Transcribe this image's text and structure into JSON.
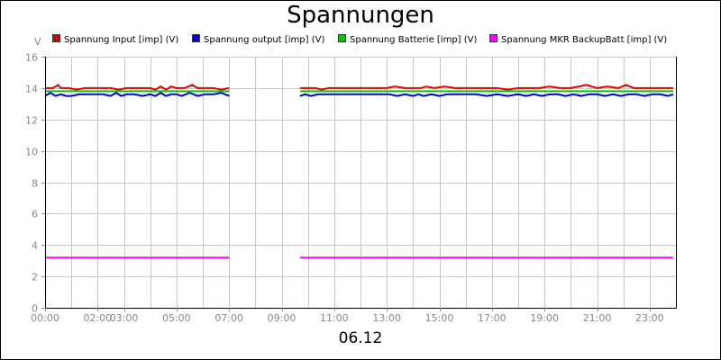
{
  "chart_data": {
    "type": "line",
    "title": "Spannungen",
    "xlabel": "06.12",
    "ylabel": "V",
    "ylim": [
      0,
      16
    ],
    "xlim": [
      0,
      24
    ],
    "y_ticks": [
      "0",
      "2",
      "4",
      "6",
      "8",
      "10",
      "12",
      "14",
      "16"
    ],
    "x_ticks": [
      {
        "pos": 0,
        "label": "00:00"
      },
      {
        "pos": 2.0,
        "label": "02:00"
      },
      {
        "pos": 3.0,
        "label": "03:00"
      },
      {
        "pos": 5.0,
        "label": "05:00"
      },
      {
        "pos": 7.0,
        "label": "07:00"
      },
      {
        "pos": 9.0,
        "label": "09:00"
      },
      {
        "pos": 11.0,
        "label": "11:00"
      },
      {
        "pos": 13.0,
        "label": "13:00"
      },
      {
        "pos": 15.0,
        "label": "15:00"
      },
      {
        "pos": 17.0,
        "label": "17:00"
      },
      {
        "pos": 19.0,
        "label": "19:00"
      },
      {
        "pos": 21.0,
        "label": "21:00"
      },
      {
        "pos": 23.0,
        "label": "23:00"
      }
    ],
    "gridlines_x": [
      0,
      1,
      2,
      3,
      4,
      5,
      6,
      7,
      8,
      9,
      10,
      11,
      12,
      13,
      14,
      15,
      16,
      17,
      18,
      19,
      20,
      21,
      22,
      23
    ],
    "grid": true,
    "legend_position": "top",
    "series": [
      {
        "name": "Spannung Input [imp] (V)",
        "color": "#e00000",
        "segments": [
          {
            "x": [
              0,
              0.3,
              0.5,
              0.6,
              0.9,
              1.2,
              1.5,
              1.8,
              2.1,
              2.3,
              2.5,
              2.8,
              3.1,
              3.4,
              3.7,
              4.0,
              4.2,
              4.4,
              4.6,
              4.8,
              5.0,
              5.3,
              5.6,
              5.8,
              6.1,
              6.4,
              6.7,
              7.0
            ],
            "y": [
              14.0,
              14.0,
              14.2,
              14.0,
              14.0,
              13.9,
              14.0,
              14.0,
              14.0,
              14.0,
              14.0,
              13.9,
              14.0,
              14.0,
              14.0,
              14.0,
              13.9,
              14.1,
              13.9,
              14.1,
              14.0,
              14.0,
              14.2,
              14.0,
              14.0,
              14.0,
              13.9,
              14.0
            ]
          },
          {
            "x": [
              9.7,
              10.0,
              10.3,
              10.5,
              10.8,
              11.2,
              11.6,
              12.0,
              12.4,
              12.8,
              13.0,
              13.3,
              13.7,
              14.0,
              14.3,
              14.5,
              14.8,
              15.2,
              15.6,
              16.0,
              16.4,
              16.8,
              17.2,
              17.6,
              18.0,
              18.4,
              18.8,
              19.2,
              19.6,
              20.0,
              20.3,
              20.6,
              21.0,
              21.4,
              21.8,
              22.1,
              22.4,
              22.8,
              23.2,
              23.6,
              23.9
            ],
            "y": [
              14.0,
              14.0,
              14.0,
              13.9,
              14.0,
              14.0,
              14.0,
              14.0,
              14.0,
              14.0,
              14.0,
              14.1,
              14.0,
              14.0,
              14.0,
              14.1,
              14.0,
              14.1,
              14.0,
              14.0,
              14.0,
              14.0,
              14.0,
              13.9,
              14.0,
              14.0,
              14.0,
              14.1,
              14.0,
              14.0,
              14.1,
              14.2,
              14.0,
              14.1,
              14.0,
              14.2,
              14.0,
              14.0,
              14.0,
              14.0,
              14.0
            ]
          }
        ]
      },
      {
        "name": "Spannung output [imp] (V)",
        "color": "#0000dd",
        "segments": [
          {
            "x": [
              0,
              0.2,
              0.4,
              0.6,
              0.8,
              1.0,
              1.3,
              1.6,
              1.9,
              2.2,
              2.5,
              2.7,
              2.9,
              3.1,
              3.4,
              3.7,
              4.0,
              4.2,
              4.4,
              4.6,
              4.8,
              5.0,
              5.2,
              5.5,
              5.8,
              6.1,
              6.4,
              6.7,
              7.0
            ],
            "y": [
              13.5,
              13.7,
              13.5,
              13.6,
              13.5,
              13.5,
              13.6,
              13.6,
              13.6,
              13.6,
              13.5,
              13.7,
              13.5,
              13.6,
              13.6,
              13.5,
              13.6,
              13.5,
              13.7,
              13.5,
              13.6,
              13.6,
              13.5,
              13.7,
              13.5,
              13.6,
              13.6,
              13.7,
              13.5
            ]
          },
          {
            "x": [
              9.7,
              9.9,
              10.1,
              10.4,
              10.7,
              11.0,
              11.3,
              11.6,
              12.0,
              12.4,
              12.8,
              13.1,
              13.4,
              13.7,
              14.0,
              14.2,
              14.4,
              14.7,
              15.0,
              15.3,
              15.6,
              16.0,
              16.4,
              16.8,
              17.2,
              17.6,
              18.0,
              18.3,
              18.6,
              18.9,
              19.2,
              19.5,
              19.8,
              20.1,
              20.4,
              20.7,
              21.0,
              21.3,
              21.6,
              21.9,
              22.2,
              22.5,
              22.8,
              23.1,
              23.4,
              23.7,
              23.9
            ],
            "y": [
              13.5,
              13.6,
              13.5,
              13.6,
              13.6,
              13.6,
              13.6,
              13.6,
              13.6,
              13.6,
              13.6,
              13.6,
              13.5,
              13.6,
              13.5,
              13.6,
              13.5,
              13.6,
              13.5,
              13.6,
              13.6,
              13.6,
              13.6,
              13.5,
              13.6,
              13.5,
              13.6,
              13.5,
              13.6,
              13.5,
              13.6,
              13.6,
              13.5,
              13.6,
              13.5,
              13.6,
              13.6,
              13.5,
              13.6,
              13.5,
              13.6,
              13.6,
              13.5,
              13.6,
              13.6,
              13.5,
              13.6
            ]
          }
        ]
      },
      {
        "name": "Spannung Batterie [imp] (V)",
        "color": "#00cc00",
        "segments": [
          {
            "x": [
              0,
              7.0
            ],
            "y": [
              13.8,
              13.8
            ]
          },
          {
            "x": [
              9.7,
              23.9
            ],
            "y": [
              13.8,
              13.8
            ]
          }
        ]
      },
      {
        "name": "Spannung MKR BackupBatt [imp] (V)",
        "color": "#ff00ff",
        "segments": [
          {
            "x": [
              0,
              7.0
            ],
            "y": [
              3.2,
              3.2
            ]
          },
          {
            "x": [
              9.7,
              23.9
            ],
            "y": [
              3.2,
              3.2
            ]
          }
        ]
      }
    ]
  }
}
